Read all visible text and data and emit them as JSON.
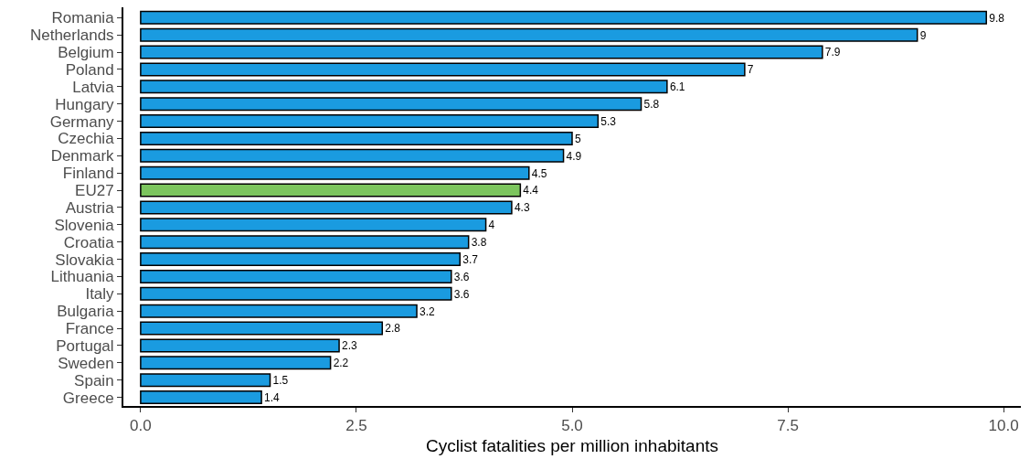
{
  "chart_data": {
    "type": "bar",
    "orientation": "horizontal",
    "xlabel": "Cyclist fatalities per million inhabitants",
    "categories": [
      "Romania",
      "Netherlands",
      "Belgium",
      "Poland",
      "Latvia",
      "Hungary",
      "Germany",
      "Czechia",
      "Denmark",
      "Finland",
      "EU27",
      "Austria",
      "Slovenia",
      "Croatia",
      "Slovakia",
      "Lithuania",
      "Italy",
      "Bulgaria",
      "France",
      "Portugal",
      "Sweden",
      "Spain",
      "Greece"
    ],
    "values": [
      9.8,
      9,
      7.9,
      7,
      6.1,
      5.8,
      5.3,
      5,
      4.9,
      4.5,
      4.4,
      4.3,
      4,
      3.8,
      3.7,
      3.6,
      3.6,
      3.2,
      2.8,
      2.3,
      2.2,
      1.5,
      1.4
    ],
    "colors": [
      "#1a9be0",
      "#1a9be0",
      "#1a9be0",
      "#1a9be0",
      "#1a9be0",
      "#1a9be0",
      "#1a9be0",
      "#1a9be0",
      "#1a9be0",
      "#1a9be0",
      "#7cc55e",
      "#1a9be0",
      "#1a9be0",
      "#1a9be0",
      "#1a9be0",
      "#1a9be0",
      "#1a9be0",
      "#1a9be0",
      "#1a9be0",
      "#1a9be0",
      "#1a9be0",
      "#1a9be0",
      "#1a9be0"
    ],
    "xlim": [
      -0.2,
      10.2
    ],
    "xticks": [
      {
        "value": 0,
        "label": "0.0"
      },
      {
        "value": 2.5,
        "label": "2.5"
      },
      {
        "value": 5,
        "label": "5.0"
      },
      {
        "value": 7.5,
        "label": "7.5"
      },
      {
        "value": 10,
        "label": "10.0"
      }
    ],
    "data_labels": true
  }
}
